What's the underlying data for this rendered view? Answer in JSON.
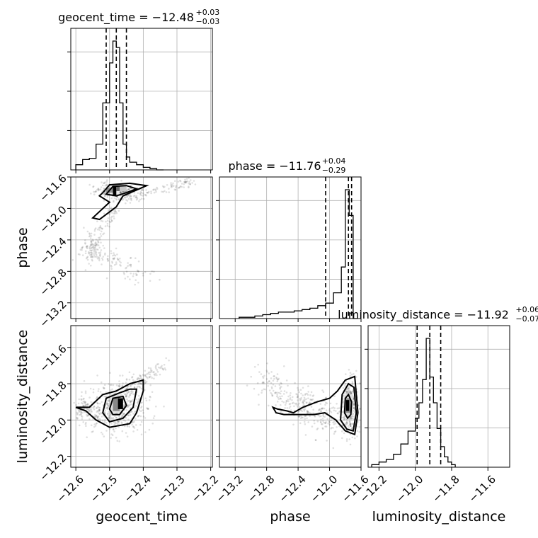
{
  "chart_data": {
    "type": "corner",
    "parameters": [
      {
        "key": "geocent_time",
        "label": "geocent_time",
        "ticks": [
          "−12.6",
          "−12.5",
          "−12.4",
          "−12.3",
          "−12.2"
        ],
        "tick_values": [
          -12.6,
          -12.5,
          -12.4,
          -12.3,
          -12.2
        ],
        "range": [
          -12.615,
          -12.195
        ]
      },
      {
        "key": "phase",
        "label": "phase",
        "ticks": [
          "−13.2",
          "−12.8",
          "−12.4",
          "−12.0",
          "−11.6"
        ],
        "tick_values": [
          -13.2,
          -12.8,
          -12.4,
          -12.0,
          -11.6
        ],
        "range": [
          -13.4,
          -11.6
        ]
      },
      {
        "key": "luminosity_distance",
        "label": "luminosity_distance",
        "ticks": [
          "−12.2",
          "−12.0",
          "−11.8",
          "−11.6"
        ],
        "tick_values": [
          -12.2,
          -12.0,
          -11.8,
          -11.6
        ],
        "range": [
          -12.26,
          -11.48
        ]
      }
    ],
    "titles": [
      {
        "main": "geocent_time = −12.48",
        "sup": "+0.03",
        "sub": "−0.03"
      },
      {
        "main": "phase = −11.76",
        "sup": "+0.04",
        "sub": "−0.29"
      },
      {
        "main": "luminosity_distance = −11.92",
        "sup": "+0.06",
        "sub": "−0.07"
      }
    ],
    "quantiles": [
      [
        -12.51,
        -12.48,
        -12.45
      ],
      [
        -12.05,
        -11.76,
        -11.72
      ],
      [
        -11.99,
        -11.92,
        -11.86
      ]
    ],
    "histograms": [
      {
        "edges": [
          -12.6,
          -12.58,
          -12.56,
          -12.54,
          -12.52,
          -12.5,
          -12.49,
          -12.48,
          -12.47,
          -12.46,
          -12.45,
          -12.44,
          -12.42,
          -12.4,
          -12.38,
          -12.36,
          -12.34
        ],
        "counts": [
          4,
          8,
          9,
          20,
          52,
          83,
          100,
          95,
          52,
          20,
          10,
          6,
          4,
          2,
          1,
          0
        ]
      },
      {
        "edges": [
          -13.15,
          -13.05,
          -12.95,
          -12.85,
          -12.75,
          -12.65,
          -12.55,
          -12.45,
          -12.35,
          -12.25,
          -12.15,
          -12.05,
          -11.95,
          -11.85,
          -11.8,
          -11.75,
          -11.7,
          -11.65
        ],
        "counts": [
          1,
          1,
          2,
          3,
          4,
          5,
          5,
          6,
          7,
          8,
          10,
          12,
          20,
          40,
          100,
          80,
          0
        ]
      },
      {
        "edges": [
          -12.24,
          -12.2,
          -12.16,
          -12.12,
          -12.08,
          -12.04,
          -12.0,
          -11.98,
          -11.96,
          -11.94,
          -11.92,
          -11.9,
          -11.88,
          -11.86,
          -11.84,
          -11.82,
          -11.8,
          -11.78
        ],
        "counts": [
          2,
          4,
          6,
          10,
          18,
          28,
          38,
          50,
          68,
          100,
          70,
          50,
          30,
          16,
          8,
          4,
          2
        ]
      }
    ],
    "grid": true
  }
}
